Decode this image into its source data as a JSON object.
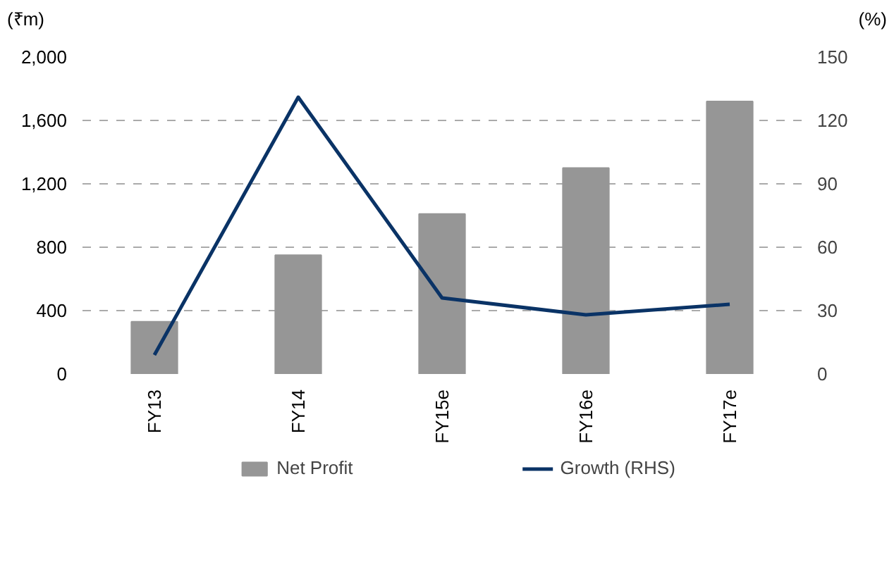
{
  "chart_data": {
    "type": "bar",
    "ylabel": "(₹m)",
    "y2label": "(%)",
    "categories": [
      "FY13",
      "FY14",
      "FY15e",
      "FY16e",
      "FY17e"
    ],
    "series": [
      {
        "name": "Net Profit",
        "color": "#969696",
        "values": [
          330,
          750,
          1010,
          1300,
          1720
        ]
      },
      {
        "name": "Growth (RHS)",
        "type": "line",
        "axis": "y2",
        "color": "#0a3366",
        "values": [
          9,
          131,
          36,
          28,
          33
        ]
      }
    ],
    "ylim": [
      0,
      2000
    ],
    "yticks": [
      0,
      {
        "value": 400,
        "label": "400"
      },
      {
        "value": 800,
        "label": "800"
      },
      {
        "value": 1200,
        "label": "1,200"
      },
      {
        "value": 1600,
        "label": "1,600"
      },
      {
        "value": 2000,
        "label": "2,000"
      }
    ],
    "y2lim": [
      0,
      150
    ],
    "y2ticks": [
      0,
      30,
      60,
      90,
      120,
      150
    ],
    "grid": "y",
    "legend": "bottom",
    "line_style": "solid",
    "marker": "none"
  }
}
